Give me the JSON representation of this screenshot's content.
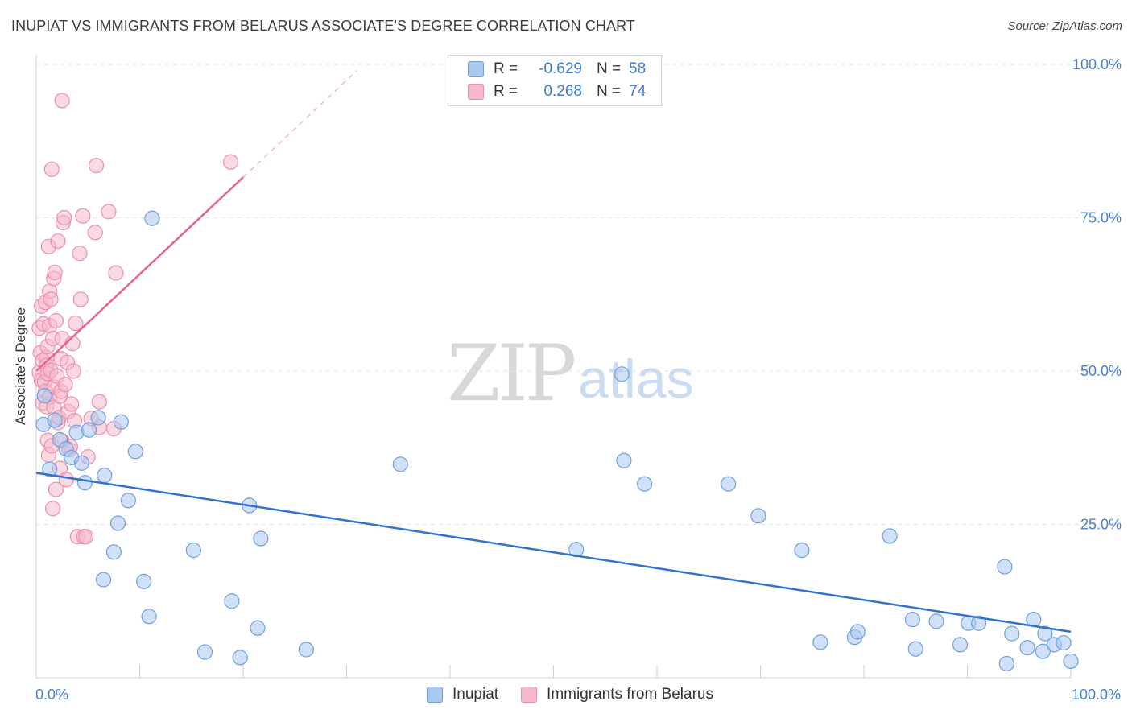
{
  "title": "INUPIAT VS IMMIGRANTS FROM BELARUS ASSOCIATE'S DEGREE CORRELATION CHART",
  "source": "Source: ZipAtlas.com",
  "watermark": {
    "zip": "ZIP",
    "atlas": "atlas"
  },
  "colors": {
    "inupiat_fill": "#a9c8f0",
    "inupiat_stroke": "#6f9fdd",
    "inupiat_line": "#2f72d0",
    "belarus_fill": "#f6b9cc",
    "belarus_stroke": "#ec8eab",
    "belarus_line": "#e8648f",
    "tick_text": "#4a7fd0",
    "grid": "#e3e3e3"
  },
  "legend": {
    "rows": [
      {
        "r_label": "R =",
        "r_value": "-0.629",
        "n_label": "N =",
        "n_value": "58"
      },
      {
        "r_label": "R =",
        "r_value": "0.268",
        "n_label": "N =",
        "n_value": "74"
      }
    ]
  },
  "bottom_legend": {
    "inupiat": "Inupiat",
    "belarus": "Immigrants from Belarus"
  },
  "chart_data": {
    "type": "scatter",
    "title": "INUPIAT VS IMMIGRANTS FROM BELARUS ASSOCIATE'S DEGREE CORRELATION CHART",
    "xlabel": "",
    "ylabel": "Associate's Degree",
    "xlim": [
      0,
      100
    ],
    "ylim": [
      0,
      100
    ],
    "y_ticks": [
      {
        "v": 100,
        "label": "100.0%"
      },
      {
        "v": 75,
        "label": "75.0%"
      },
      {
        "v": 50,
        "label": "50.0%"
      },
      {
        "v": 25,
        "label": "25.0%"
      }
    ],
    "x_ticks": [
      {
        "v": 0,
        "label": "0.0%"
      },
      {
        "v": 100,
        "label": "100.0%"
      }
    ],
    "grid": true,
    "legend_position": "top-center",
    "series": [
      {
        "name": "Inupiat",
        "R": -0.629,
        "N": 58,
        "trend": {
          "x0": 0,
          "y0": 33.4,
          "x1": 100,
          "y1": 7.5
        },
        "points": [
          [
            0.8,
            46.0
          ],
          [
            0.7,
            41.3
          ],
          [
            1.3,
            34.0
          ],
          [
            1.8,
            42.0
          ],
          [
            2.3,
            38.8
          ],
          [
            2.9,
            37.3
          ],
          [
            3.4,
            35.9
          ],
          [
            3.9,
            40.0
          ],
          [
            4.4,
            35.0
          ],
          [
            4.7,
            31.8
          ],
          [
            5.1,
            40.4
          ],
          [
            6.0,
            42.4
          ],
          [
            6.5,
            16.0
          ],
          [
            6.6,
            33.0
          ],
          [
            7.5,
            20.5
          ],
          [
            7.9,
            25.2
          ],
          [
            8.2,
            41.7
          ],
          [
            8.9,
            28.9
          ],
          [
            9.6,
            36.9
          ],
          [
            10.4,
            15.7
          ],
          [
            10.9,
            10.0
          ],
          [
            11.2,
            74.9
          ],
          [
            15.2,
            20.8
          ],
          [
            16.3,
            4.2
          ],
          [
            18.9,
            12.5
          ],
          [
            19.7,
            3.3
          ],
          [
            20.6,
            28.1
          ],
          [
            21.4,
            8.1
          ],
          [
            21.7,
            22.7
          ],
          [
            26.1,
            4.6
          ],
          [
            35.2,
            34.8
          ],
          [
            52.2,
            20.9
          ],
          [
            56.6,
            49.5
          ],
          [
            56.8,
            35.4
          ],
          [
            58.8,
            31.6
          ],
          [
            66.9,
            31.6
          ],
          [
            69.8,
            26.4
          ],
          [
            74.0,
            20.8
          ],
          [
            75.8,
            5.8
          ],
          [
            79.1,
            6.6
          ],
          [
            79.4,
            7.5
          ],
          [
            82.5,
            23.1
          ],
          [
            84.7,
            9.5
          ],
          [
            85.0,
            4.7
          ],
          [
            87.0,
            9.2
          ],
          [
            89.3,
            5.4
          ],
          [
            90.1,
            8.9
          ],
          [
            91.1,
            8.9
          ],
          [
            93.6,
            18.1
          ],
          [
            93.8,
            2.3
          ],
          [
            94.3,
            7.2
          ],
          [
            95.8,
            4.9
          ],
          [
            96.4,
            9.5
          ],
          [
            97.3,
            4.3
          ],
          [
            97.5,
            7.2
          ],
          [
            98.4,
            5.4
          ],
          [
            99.3,
            5.7
          ],
          [
            100.0,
            2.7
          ]
        ]
      },
      {
        "name": "Immigrants from Belarus",
        "R": 0.268,
        "N": 74,
        "trend": {
          "x0": 0,
          "y0": 50.0,
          "x1": 20.0,
          "y1": 81.6
        },
        "trend_dashed": {
          "x0": 20.0,
          "y0": 81.6,
          "x1": 31.0,
          "y1": 99.0
        },
        "points": [
          [
            0.3,
            57.0
          ],
          [
            0.3,
            49.8
          ],
          [
            0.4,
            53.0
          ],
          [
            0.5,
            60.6
          ],
          [
            0.5,
            48.5
          ],
          [
            0.6,
            44.8
          ],
          [
            0.6,
            51.7
          ],
          [
            0.7,
            57.7
          ],
          [
            0.8,
            48.2
          ],
          [
            0.9,
            61.2
          ],
          [
            0.9,
            46.7
          ],
          [
            1.0,
            52.2
          ],
          [
            1.0,
            50.9
          ],
          [
            1.0,
            44.2
          ],
          [
            1.1,
            49.6
          ],
          [
            1.1,
            38.7
          ],
          [
            1.1,
            54.0
          ],
          [
            1.2,
            70.3
          ],
          [
            1.2,
            36.3
          ],
          [
            1.3,
            57.4
          ],
          [
            1.3,
            63.0
          ],
          [
            1.3,
            45.8
          ],
          [
            1.4,
            61.7
          ],
          [
            1.4,
            50.1
          ],
          [
            1.5,
            82.9
          ],
          [
            1.5,
            37.8
          ],
          [
            1.6,
            27.6
          ],
          [
            1.6,
            55.3
          ],
          [
            1.7,
            47.4
          ],
          [
            1.7,
            44.1
          ],
          [
            1.7,
            65.1
          ],
          [
            1.8,
            66.1
          ],
          [
            1.9,
            30.7
          ],
          [
            1.9,
            58.2
          ],
          [
            2.0,
            49.2
          ],
          [
            2.1,
            71.2
          ],
          [
            2.1,
            41.6
          ],
          [
            2.2,
            42.4
          ],
          [
            2.3,
            45.9
          ],
          [
            2.3,
            34.1
          ],
          [
            2.4,
            46.7
          ],
          [
            2.4,
            52.0
          ],
          [
            2.5,
            38.6
          ],
          [
            2.5,
            55.3
          ],
          [
            2.5,
            94.1
          ],
          [
            2.6,
            74.2
          ],
          [
            2.7,
            75.0
          ],
          [
            2.8,
            47.8
          ],
          [
            2.9,
            32.3
          ],
          [
            3.0,
            51.4
          ],
          [
            3.1,
            43.4
          ],
          [
            3.2,
            37.2
          ],
          [
            3.3,
            37.7
          ],
          [
            3.4,
            44.6
          ],
          [
            3.5,
            54.5
          ],
          [
            3.6,
            50.0
          ],
          [
            3.7,
            41.9
          ],
          [
            3.8,
            57.8
          ],
          [
            4.0,
            23.0
          ],
          [
            4.2,
            69.2
          ],
          [
            4.3,
            61.7
          ],
          [
            4.5,
            75.3
          ],
          [
            4.6,
            23.0
          ],
          [
            4.8,
            23.0
          ],
          [
            5.0,
            36.0
          ],
          [
            5.3,
            42.3
          ],
          [
            5.7,
            72.6
          ],
          [
            5.8,
            83.5
          ],
          [
            6.1,
            40.8
          ],
          [
            6.1,
            45.0
          ],
          [
            7.0,
            76.0
          ],
          [
            7.5,
            40.6
          ],
          [
            7.7,
            66.0
          ],
          [
            18.8,
            84.1
          ]
        ]
      }
    ]
  }
}
